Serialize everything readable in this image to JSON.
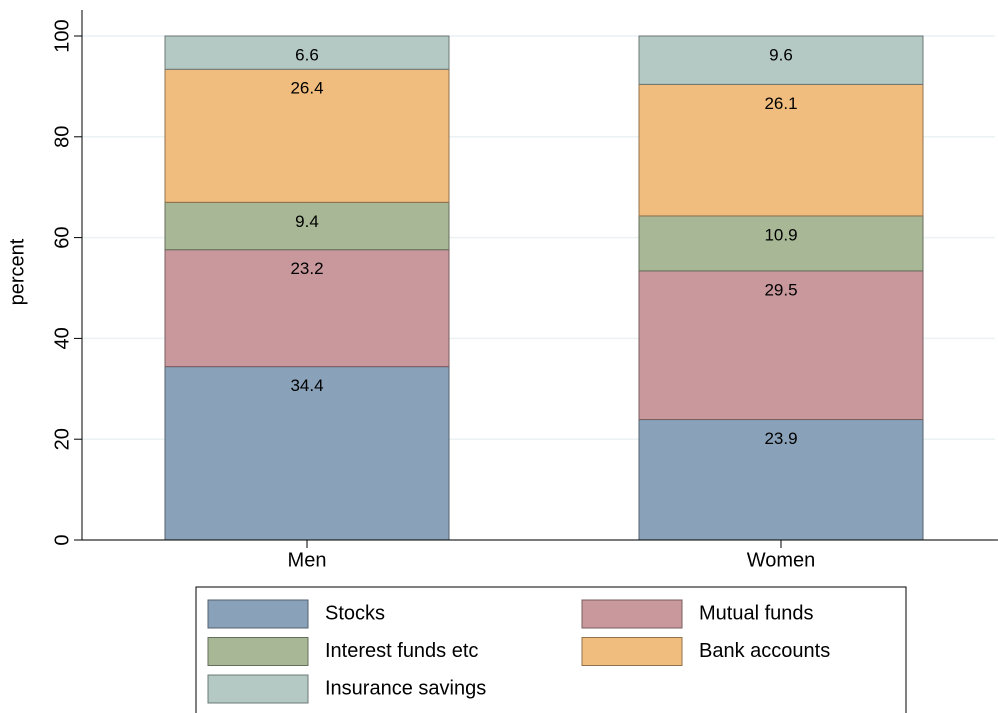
{
  "chart_data": {
    "type": "stacked_bar",
    "categories": [
      "Men",
      "Women"
    ],
    "ylabel": "percent",
    "ylim": [
      0,
      100
    ],
    "yticks": [
      0,
      20,
      40,
      60,
      80,
      100
    ],
    "grid": true,
    "series": [
      {
        "name": "Stocks",
        "color": "#8aa2b9",
        "values": [
          34.4,
          23.9
        ]
      },
      {
        "name": "Mutual funds",
        "color": "#c8989c",
        "values": [
          23.2,
          29.5
        ]
      },
      {
        "name": "Interest funds etc",
        "color": "#a8b896",
        "values": [
          9.4,
          10.9
        ]
      },
      {
        "name": "Bank accounts",
        "color": "#f0bd7e",
        "values": [
          26.4,
          26.1
        ]
      },
      {
        "name": "Insurance savings",
        "color": "#b4c8c4",
        "values": [
          6.6,
          9.6
        ]
      }
    ]
  }
}
